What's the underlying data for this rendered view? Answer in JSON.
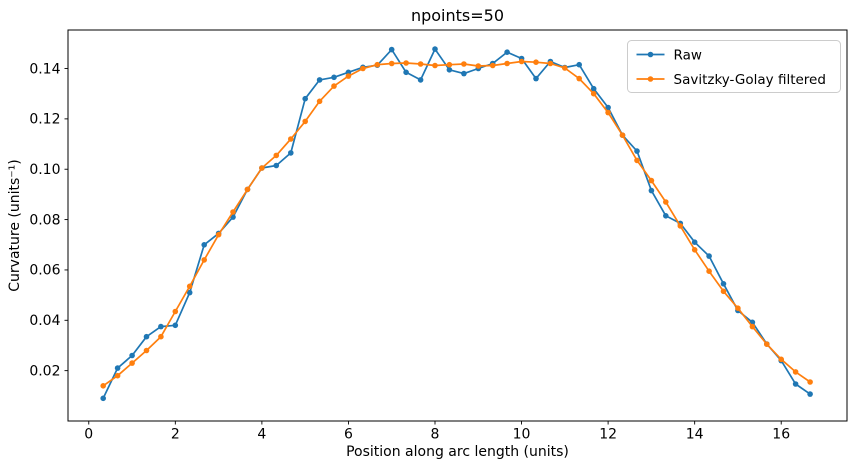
{
  "chart_data": {
    "type": "line",
    "title": "npoints=50",
    "xlabel": "Position along arc length (units)",
    "ylabel": "Curvature (units⁻¹)",
    "xlim": [
      -0.48,
      17.52
    ],
    "ylim": [
      0.0,
      0.1553
    ],
    "x_ticks": [
      0,
      2,
      4,
      6,
      8,
      10,
      12,
      14,
      16
    ],
    "y_ticks": [
      0.02,
      0.04,
      0.06,
      0.08,
      0.1,
      0.12,
      0.14
    ],
    "grid": false,
    "legend_position": "upper right",
    "x": [
      0.333,
      0.667,
      1.0,
      1.333,
      1.667,
      2.0,
      2.333,
      2.667,
      3.0,
      3.333,
      3.667,
      4.0,
      4.333,
      4.667,
      5.0,
      5.333,
      5.667,
      6.0,
      6.333,
      6.667,
      7.0,
      7.333,
      7.667,
      8.0,
      8.333,
      8.667,
      9.0,
      9.333,
      9.667,
      10.0,
      10.333,
      10.667,
      11.0,
      11.333,
      11.667,
      12.0,
      12.333,
      12.667,
      13.0,
      13.333,
      13.667,
      14.0,
      14.333,
      14.667,
      15.0,
      15.333,
      15.667,
      16.0,
      16.333,
      16.667
    ],
    "series": [
      {
        "name": "Raw",
        "color": "#1f77b4",
        "values": [
          0.009,
          0.021,
          0.026,
          0.0335,
          0.0375,
          0.038,
          0.051,
          0.07,
          0.0745,
          0.081,
          0.092,
          0.1005,
          0.1015,
          0.1065,
          0.128,
          0.1355,
          0.1365,
          0.1385,
          0.1405,
          0.1413,
          0.1475,
          0.1385,
          0.1355,
          0.1477,
          0.1395,
          0.138,
          0.14,
          0.142,
          0.1465,
          0.144,
          0.136,
          0.1428,
          0.1404,
          0.1415,
          0.132,
          0.1245,
          0.1135,
          0.1072,
          0.0915,
          0.0815,
          0.0785,
          0.071,
          0.0655,
          0.0545,
          0.0439,
          0.0392,
          0.0306,
          0.024,
          0.0147,
          0.0107
        ]
      },
      {
        "name": "Savitzky-Golay filtered",
        "color": "#ff7f0e",
        "values": [
          0.014,
          0.018,
          0.023,
          0.028,
          0.0335,
          0.0435,
          0.0535,
          0.064,
          0.074,
          0.083,
          0.092,
          0.1005,
          0.1055,
          0.112,
          0.119,
          0.127,
          0.133,
          0.137,
          0.14,
          0.1415,
          0.142,
          0.1422,
          0.1418,
          0.1412,
          0.1415,
          0.1418,
          0.141,
          0.1412,
          0.142,
          0.1428,
          0.1425,
          0.142,
          0.1402,
          0.136,
          0.13,
          0.1225,
          0.1135,
          0.1035,
          0.0955,
          0.087,
          0.0775,
          0.068,
          0.0595,
          0.0515,
          0.0448,
          0.0375,
          0.0305,
          0.0245,
          0.0195,
          0.0155
        ]
      }
    ],
    "styles": {
      "axis_color": "#000000",
      "legend_border": "#cccccc",
      "legend_bg": "#ffffff",
      "marker_radius": 2.8,
      "line_width": 1.7
    }
  }
}
